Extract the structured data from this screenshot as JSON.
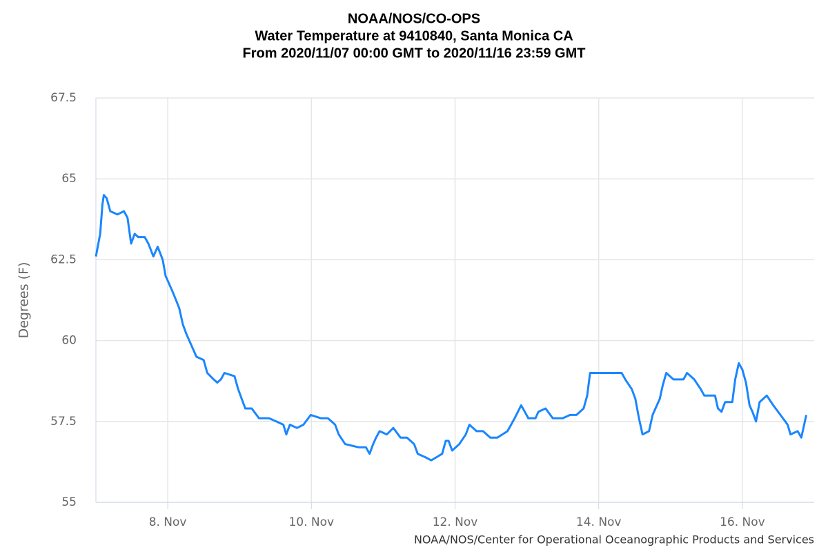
{
  "chart_data": {
    "type": "line",
    "title": [
      "NOAA/NOS/CO-OPS",
      "Water Temperature at 9410840, Santa Monica CA",
      "From 2020/11/07 00:00 GMT to 2020/11/16 23:59 GMT"
    ],
    "ylabel": "Degrees (F)",
    "credits": "NOAA/NOS/Center for Operational Oceanographic Products and Services",
    "xlim": [
      7,
      17
    ],
    "xticks": [
      {
        "value": 8,
        "label": "8. Nov"
      },
      {
        "value": 10,
        "label": "10. Nov"
      },
      {
        "value": 12,
        "label": "12. Nov"
      },
      {
        "value": 14,
        "label": "14. Nov"
      },
      {
        "value": 16,
        "label": "16. Nov"
      }
    ],
    "ylim": [
      55,
      67.5
    ],
    "yticks": [
      55,
      57.5,
      60,
      62.5,
      65,
      67.5
    ],
    "grid": true,
    "series": [
      {
        "color": "#1a86ff",
        "x": [
          7.0,
          7.06,
          7.09,
          7.11,
          7.15,
          7.2,
          7.3,
          7.39,
          7.44,
          7.49,
          7.54,
          7.59,
          7.68,
          7.73,
          7.8,
          7.86,
          7.93,
          7.97,
          8.07,
          8.16,
          8.21,
          8.26,
          8.34,
          8.4,
          8.5,
          8.55,
          8.64,
          8.69,
          8.74,
          8.79,
          8.93,
          8.98,
          9.03,
          9.08,
          9.17,
          9.27,
          9.41,
          9.51,
          9.61,
          9.65,
          9.7,
          9.8,
          9.89,
          9.99,
          10.13,
          10.23,
          10.33,
          10.38,
          10.47,
          10.66,
          10.76,
          10.81,
          10.86,
          10.9,
          10.95,
          11.05,
          11.14,
          11.24,
          11.33,
          11.43,
          11.48,
          11.58,
          11.67,
          11.82,
          11.87,
          11.91,
          11.96,
          12.06,
          12.15,
          12.2,
          12.3,
          12.39,
          12.49,
          12.59,
          12.73,
          12.83,
          12.92,
          12.97,
          13.02,
          13.12,
          13.16,
          13.26,
          13.36,
          13.5,
          13.6,
          13.69,
          13.79,
          13.84,
          13.88,
          14.03,
          14.13,
          14.32,
          14.37,
          14.46,
          14.51,
          14.56,
          14.61,
          14.7,
          14.75,
          14.85,
          14.89,
          14.94,
          15.04,
          15.18,
          15.23,
          15.33,
          15.42,
          15.47,
          15.62,
          15.66,
          15.71,
          15.76,
          15.86,
          15.9,
          15.95,
          16.0,
          16.05,
          16.1,
          16.14,
          16.19,
          16.24,
          16.34,
          16.43,
          16.53,
          16.63,
          16.67,
          16.77,
          16.82,
          16.87,
          16.89
        ],
        "values": [
          62.6,
          63.3,
          64.2,
          64.5,
          64.4,
          64.0,
          63.9,
          64.0,
          63.8,
          63.0,
          63.3,
          63.2,
          63.2,
          63.0,
          62.6,
          62.9,
          62.5,
          62.0,
          61.5,
          61.0,
          60.5,
          60.2,
          59.8,
          59.5,
          59.4,
          59.0,
          58.8,
          58.7,
          58.8,
          59.0,
          58.9,
          58.5,
          58.2,
          57.9,
          57.9,
          57.6,
          57.6,
          57.5,
          57.4,
          57.1,
          57.4,
          57.3,
          57.4,
          57.7,
          57.6,
          57.6,
          57.4,
          57.1,
          56.8,
          56.7,
          56.7,
          56.5,
          56.8,
          57.0,
          57.2,
          57.1,
          57.3,
          57.0,
          57.0,
          56.8,
          56.5,
          56.4,
          56.3,
          56.5,
          56.9,
          56.9,
          56.6,
          56.8,
          57.1,
          57.4,
          57.2,
          57.2,
          57.0,
          57.0,
          57.2,
          57.6,
          58.0,
          57.8,
          57.6,
          57.6,
          57.8,
          57.9,
          57.6,
          57.6,
          57.7,
          57.7,
          57.9,
          58.3,
          59.0,
          59.0,
          59.0,
          59.0,
          58.8,
          58.5,
          58.2,
          57.6,
          57.1,
          57.2,
          57.7,
          58.2,
          58.6,
          59.0,
          58.8,
          58.8,
          59.0,
          58.8,
          58.5,
          58.3,
          58.3,
          57.9,
          57.8,
          58.1,
          58.1,
          58.8,
          59.3,
          59.1,
          58.7,
          58.0,
          57.8,
          57.5,
          58.1,
          58.3,
          58.0,
          57.7,
          57.4,
          57.1,
          57.2,
          57.0,
          57.5,
          57.7
        ]
      }
    ]
  }
}
